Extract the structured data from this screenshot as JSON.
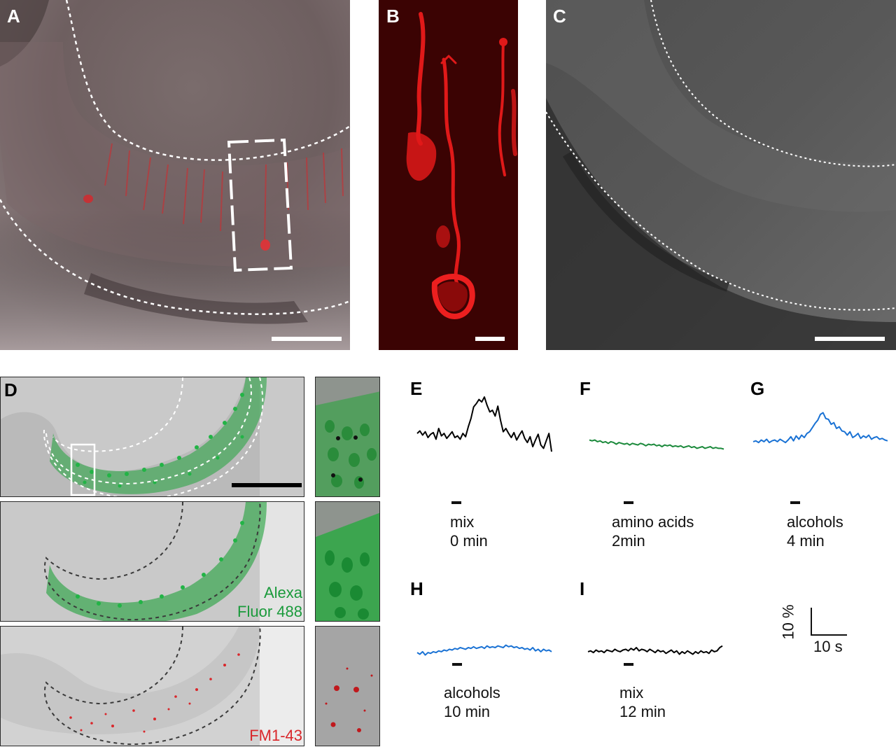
{
  "panels": {
    "A": "A",
    "B": "B",
    "C": "C",
    "D": "D",
    "E": "E",
    "F": "F",
    "G": "G",
    "H": "H",
    "I": "I"
  },
  "labels_D": {
    "stain_green_line1": "Alexa",
    "stain_green_line2": "Fluor 488",
    "stain_red": "FM1-43"
  },
  "traces": [
    {
      "panel": "E",
      "stimulus": "mix",
      "time": "0 min",
      "color": "#000000",
      "values": [
        60,
        63,
        58,
        62,
        55,
        59,
        61,
        53,
        66,
        57,
        60,
        54,
        58,
        62,
        55,
        57,
        53,
        60,
        56,
        68,
        78,
        92,
        96,
        101,
        98,
        104,
        94,
        86,
        88,
        81,
        93,
        76,
        62,
        66,
        60,
        55,
        61,
        52,
        58,
        63,
        54,
        49,
        56,
        44,
        52,
        59,
        46,
        42,
        51,
        60,
        38
      ]
    },
    {
      "panel": "F",
      "stimulus": "amino acids",
      "time": "2min",
      "color": "#1c8a3c",
      "values": [
        52,
        51,
        52,
        50,
        51,
        49,
        50,
        48,
        50,
        49,
        47,
        49,
        48,
        47,
        48,
        46,
        48,
        47,
        46,
        48,
        47,
        45,
        47,
        46,
        47,
        45,
        46,
        44,
        46,
        45,
        46,
        44,
        45,
        44,
        45,
        43,
        44,
        45,
        43,
        44,
        42,
        43,
        44,
        42,
        43,
        44,
        42,
        43,
        42,
        42,
        41
      ]
    },
    {
      "panel": "G",
      "stimulus": "alcohols",
      "time": "4 min",
      "color": "#1a72d4",
      "values": [
        50,
        51,
        49,
        52,
        50,
        53,
        49,
        51,
        52,
        50,
        53,
        51,
        49,
        52,
        56,
        51,
        57,
        53,
        58,
        55,
        60,
        62,
        67,
        72,
        76,
        83,
        85,
        78,
        77,
        71,
        73,
        66,
        68,
        63,
        62,
        58,
        62,
        55,
        57,
        60,
        54,
        57,
        55,
        58,
        53,
        55,
        56,
        53,
        54,
        52,
        51
      ]
    },
    {
      "panel": "H",
      "stimulus": "alcohols",
      "time": "10 min",
      "color": "#1a72d4",
      "values": [
        49,
        47,
        50,
        46,
        49,
        48,
        50,
        49,
        51,
        50,
        52,
        51,
        53,
        52,
        54,
        53,
        55,
        54,
        53,
        55,
        54,
        56,
        54,
        55,
        56,
        54,
        57,
        55,
        56,
        55,
        57,
        56,
        55,
        58,
        56,
        57,
        55,
        56,
        54,
        55,
        53,
        54,
        52,
        55,
        51,
        53,
        50,
        53,
        51,
        52,
        50
      ]
    },
    {
      "panel": "I",
      "stimulus": "mix",
      "time": "12 min",
      "color": "#000000",
      "values": [
        50,
        51,
        49,
        52,
        50,
        51,
        49,
        52,
        51,
        50,
        53,
        51,
        50,
        52,
        53,
        51,
        54,
        52,
        55,
        51,
        53,
        52,
        50,
        53,
        51,
        49,
        52,
        50,
        51,
        48,
        50,
        52,
        49,
        51,
        47,
        50,
        48,
        51,
        49,
        47,
        50,
        48,
        51,
        49,
        50,
        48,
        52,
        50,
        51,
        55,
        57
      ]
    }
  ],
  "scale": {
    "vertical": "10 %",
    "horizontal": "10 s"
  }
}
